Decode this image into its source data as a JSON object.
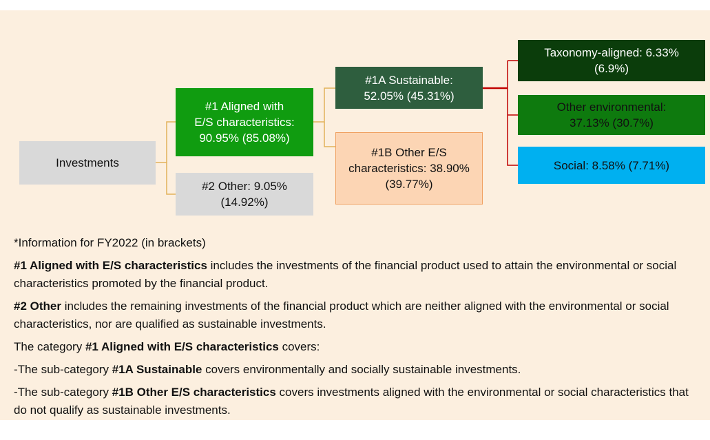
{
  "nodes": [
    {
      "id": "investments",
      "lines": [
        "Investments"
      ]
    },
    {
      "id": "aligned",
      "lines": [
        "#1 Aligned with",
        "E/S characteristics:",
        "90.95% (85.08%)"
      ]
    },
    {
      "id": "other",
      "lines": [
        "#2 Other: 9.05%",
        "(14.92%)"
      ]
    },
    {
      "id": "sustainable",
      "lines": [
        "#1A Sustainable:",
        "52.05% (45.31%)"
      ]
    },
    {
      "id": "other_es",
      "lines": [
        "#1B Other E/S",
        "characteristics: 38.90%",
        "(39.77%)"
      ]
    },
    {
      "id": "taxonomy",
      "lines": [
        "Taxonomy-aligned: 6.33%",
        "(6.9%)"
      ]
    },
    {
      "id": "other_env",
      "lines": [
        "Other environmental:",
        "37.13% (30.7%)"
      ]
    },
    {
      "id": "social",
      "lines": [
        "Social: 8.58% (7.71%)"
      ]
    }
  ],
  "notes": [
    [
      {
        "text": "*Information for FY2022 (in brackets)"
      }
    ],
    [
      {
        "text": "#1 Aligned with E/S characteristics",
        "bold": true
      },
      {
        "text": " includes the investments of the financial product used to attain the environmental or social characteristics promoted by the financial product."
      }
    ],
    [
      {
        "text": "#2 Other",
        "bold": true
      },
      {
        "text": " includes the remaining investments of the financial product which are neither aligned with the environmental or social characteristics, nor are qualified as sustainable investments."
      }
    ],
    [
      {
        "text": "The category "
      },
      {
        "text": "#1 Aligned with E/S characteristics",
        "bold": true
      },
      {
        "text": " covers:"
      }
    ],
    [
      {
        "text": "-The sub-category "
      },
      {
        "text": "#1A Sustainable",
        "bold": true
      },
      {
        "text": " covers environmentally and socially sustainable investments."
      }
    ],
    [
      {
        "text": "-The sub-category "
      },
      {
        "text": "#1B Other E/S characteristics",
        "bold": true
      },
      {
        "text": " covers investments aligned with the environmental or social characteristics that do not qualify as sustainable investments."
      }
    ]
  ]
}
